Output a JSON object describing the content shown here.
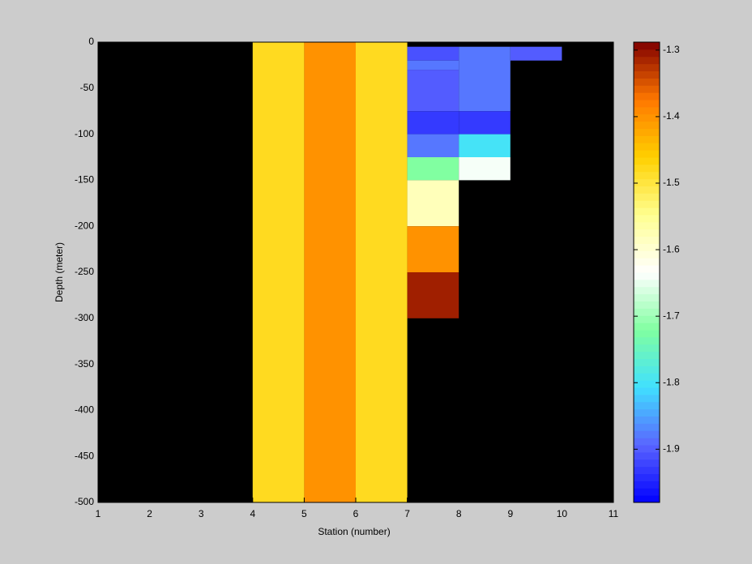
{
  "chart_data": {
    "type": "heatmap",
    "xlabel": "Station (number)",
    "ylabel": "Depth (meter)",
    "xlim": [
      1,
      11
    ],
    "xticks": [
      1,
      2,
      3,
      4,
      5,
      6,
      7,
      8,
      9,
      10,
      11
    ],
    "ylim": [
      -500,
      0
    ],
    "yticks": [
      0,
      -50,
      -100,
      -150,
      -200,
      -250,
      -300,
      -350,
      -400,
      -450,
      -500
    ],
    "clim": [
      -1.98,
      -1.288
    ],
    "cticks": [
      -1.3,
      -1.4,
      -1.5,
      -1.6,
      -1.7,
      -1.8,
      -1.9
    ],
    "colormap": [
      "#0000ff",
      "#5a64ff",
      "#40e0ff",
      "#80ffa0",
      "#ffffff",
      "#ffff90",
      "#ffd000",
      "#ff7800",
      "#800000"
    ],
    "background": "#000000",
    "cells": [
      {
        "x": [
          4,
          5
        ],
        "y": [
          -500,
          0
        ],
        "value": -1.48
      },
      {
        "x": [
          5,
          6
        ],
        "y": [
          -500,
          0
        ],
        "value": -1.4
      },
      {
        "x": [
          6,
          7
        ],
        "y": [
          -500,
          0
        ],
        "value": -1.48
      },
      {
        "x": [
          7,
          8
        ],
        "y": [
          -20,
          -5
        ],
        "value": -1.91
      },
      {
        "x": [
          7,
          8
        ],
        "y": [
          -30,
          -20
        ],
        "value": -1.88
      },
      {
        "x": [
          7,
          8
        ],
        "y": [
          -75,
          -30
        ],
        "value": -1.9
      },
      {
        "x": [
          7,
          8
        ],
        "y": [
          -100,
          -75
        ],
        "value": -1.93
      },
      {
        "x": [
          7,
          8
        ],
        "y": [
          -125,
          -100
        ],
        "value": -1.88
      },
      {
        "x": [
          7,
          8
        ],
        "y": [
          -150,
          -125
        ],
        "value": -1.72
      },
      {
        "x": [
          7,
          8
        ],
        "y": [
          -200,
          -150
        ],
        "value": -1.58
      },
      {
        "x": [
          7,
          8
        ],
        "y": [
          -250,
          -200
        ],
        "value": -1.4
      },
      {
        "x": [
          7,
          8
        ],
        "y": [
          -300,
          -250
        ],
        "value": -1.31
      },
      {
        "x": [
          8,
          9
        ],
        "y": [
          -75,
          -5
        ],
        "value": -1.88
      },
      {
        "x": [
          8,
          9
        ],
        "y": [
          -100,
          -75
        ],
        "value": -1.93
      },
      {
        "x": [
          8,
          9
        ],
        "y": [
          -125,
          -100
        ],
        "value": -1.8
      },
      {
        "x": [
          8,
          9
        ],
        "y": [
          -150,
          -125
        ],
        "value": -1.64
      },
      {
        "x": [
          9,
          10
        ],
        "y": [
          -20,
          -5
        ],
        "value": -1.9
      }
    ]
  }
}
